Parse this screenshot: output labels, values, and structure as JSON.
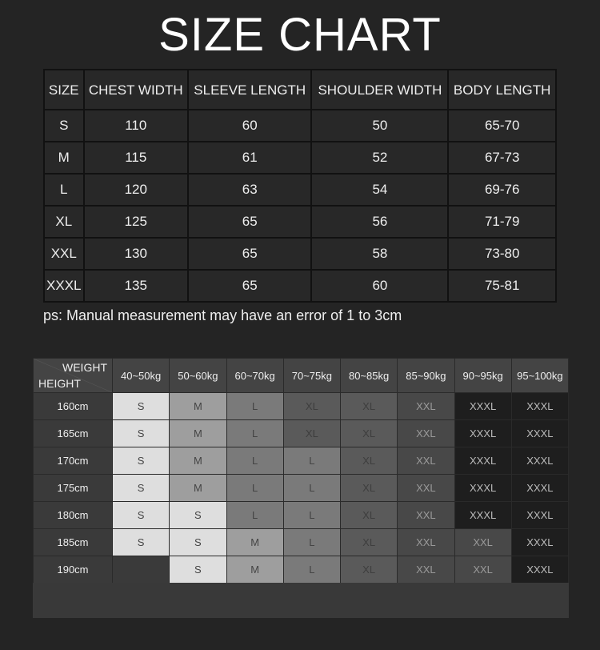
{
  "title": "SIZE CHART",
  "measurements": {
    "headers": [
      "SIZE",
      "CHEST WIDTH",
      "SLEEVE LENGTH",
      "SHOULDER WIDTH",
      "BODY LENGTH"
    ],
    "rows": [
      [
        "S",
        "110",
        "60",
        "50",
        "65-70"
      ],
      [
        "M",
        "115",
        "61",
        "52",
        "67-73"
      ],
      [
        "L",
        "120",
        "63",
        "54",
        "69-76"
      ],
      [
        "XL",
        "125",
        "65",
        "56",
        "71-79"
      ],
      [
        "XXL",
        "130",
        "65",
        "58",
        "73-80"
      ],
      [
        "XXXL",
        "135",
        "65",
        "60",
        "75-81"
      ]
    ]
  },
  "note": "ps: Manual measurement may have an error of 1 to 3cm",
  "recommend": {
    "weight_label": "WEIGHT",
    "height_label": "HEIGHT",
    "weights": [
      "40~50kg",
      "50~60kg",
      "60~70kg",
      "70~75kg",
      "80~85kg",
      "85~90kg",
      "90~95kg",
      "95~100kg"
    ],
    "rows": [
      {
        "height": "160cm",
        "sizes": [
          "S",
          "M",
          "L",
          "XL",
          "XL",
          "XXL",
          "XXXL",
          "XXXL"
        ]
      },
      {
        "height": "165cm",
        "sizes": [
          "S",
          "M",
          "L",
          "XL",
          "XL",
          "XXL",
          "XXXL",
          "XXXL"
        ]
      },
      {
        "height": "170cm",
        "sizes": [
          "S",
          "M",
          "L",
          "L",
          "XL",
          "XXL",
          "XXXL",
          "XXXL"
        ]
      },
      {
        "height": "175cm",
        "sizes": [
          "S",
          "M",
          "L",
          "L",
          "XL",
          "XXL",
          "XXXL",
          "XXXL"
        ]
      },
      {
        "height": "180cm",
        "sizes": [
          "S",
          "S",
          "L",
          "L",
          "XL",
          "XXL",
          "XXXL",
          "XXXL"
        ]
      },
      {
        "height": "185cm",
        "sizes": [
          "S",
          "S",
          "M",
          "L",
          "XL",
          "XXL",
          "XXL",
          "XXXL"
        ]
      },
      {
        "height": "190cm",
        "sizes": [
          "",
          "S",
          "M",
          "L",
          "XL",
          "XXL",
          "XXL",
          "XXXL"
        ]
      }
    ]
  },
  "size_colors": {
    "S": "#dedede",
    "M": "#9e9e9e",
    "L": "#7a7a7a",
    "XL": "#5a5a5a",
    "XXL": "#484848",
    "XXXL": "#1e1e1e",
    "": "#3a3a3a"
  },
  "size_text_colors": {
    "S": "#444444",
    "M": "#444444",
    "L": "#444444",
    "XL": "#3e3e3e",
    "XXL": "#9a9a9a",
    "XXXL": "#bbbbbb",
    "": "#eeeeee"
  }
}
